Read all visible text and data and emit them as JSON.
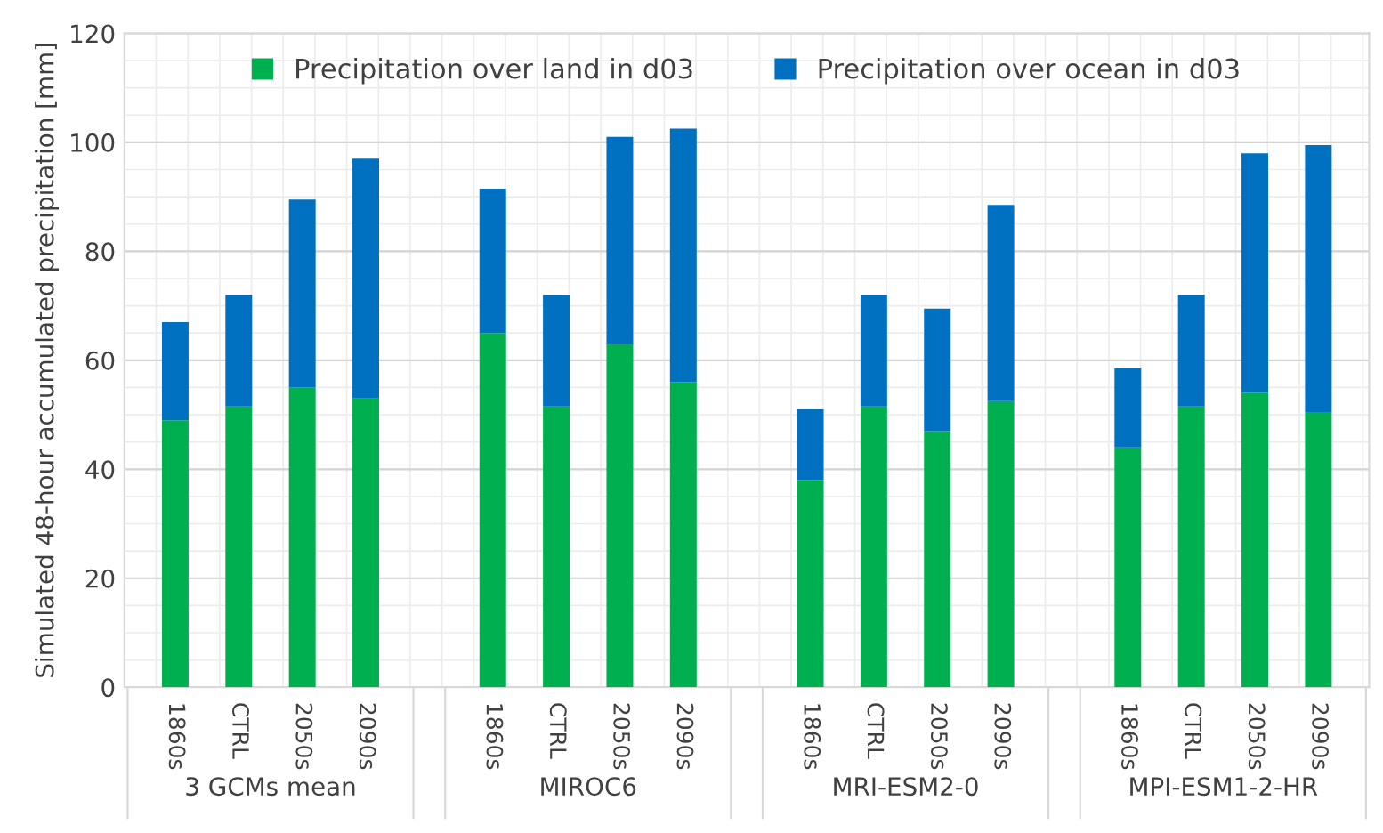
{
  "chart_data": {
    "type": "bar",
    "stacked": true,
    "ylabel": "Simulated 48-hour accumulated precipitation [mm]",
    "categories": [
      "1860s",
      "CTRL",
      "2050s",
      "2090s",
      "1860s",
      "CTRL",
      "2050s",
      "2090s",
      "1860s",
      "CTRL",
      "2050s",
      "2090s",
      "1860s",
      "CTRL",
      "2050s",
      "2090s"
    ],
    "series": [
      {
        "name": "Precipitation over land in d03",
        "color": "#00b050",
        "values": [
          49,
          51.5,
          55,
          53,
          65,
          51.5,
          63,
          56,
          38,
          51.5,
          47,
          52.5,
          44,
          51.5,
          54,
          50.5
        ]
      },
      {
        "name": "Precipitation over ocean in d03",
        "color": "#0070c0",
        "values": [
          18,
          20.5,
          34.5,
          44,
          26.5,
          20.5,
          38,
          46.5,
          13,
          20.5,
          22.5,
          36,
          14.5,
          20.5,
          44,
          49
        ]
      }
    ],
    "annotations": [
      "3 GCMs mean",
      "MIROC6",
      "MRI-ESM2-0",
      "MPI-ESM1-2-HR"
    ],
    "ylim": [
      0,
      120
    ],
    "yticks": [
      0,
      20,
      40,
      60,
      80,
      100,
      120
    ],
    "grid": true,
    "legend": "top"
  }
}
